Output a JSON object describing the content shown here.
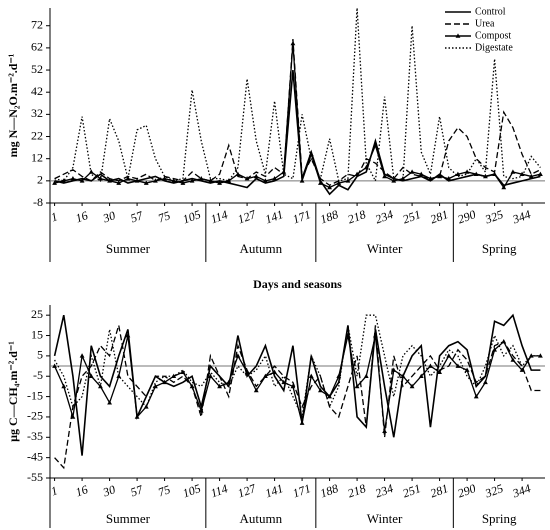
{
  "chart_data": [
    {
      "type": "line",
      "ylabel": "mg N—N₂O.m⁻².d⁻¹",
      "xlabel": "Days and seasons",
      "categories": [
        "1",
        null,
        null,
        "16",
        null,
        null,
        "30",
        null,
        null,
        "57",
        null,
        null,
        "75",
        null,
        null,
        "105",
        null,
        null,
        "114",
        null,
        null,
        "127",
        null,
        null,
        "141",
        null,
        null,
        "171",
        null,
        null,
        "188",
        null,
        null,
        "218",
        null,
        null,
        "234",
        null,
        null,
        "251",
        null,
        null,
        "281",
        null,
        null,
        "290",
        null,
        null,
        "325",
        null,
        null,
        "344",
        null,
        null
      ],
      "seasons": [
        {
          "label": "Summer",
          "start": 0,
          "end": 16
        },
        {
          "label": "Autumn",
          "start": 17,
          "end": 28
        },
        {
          "label": "Winter",
          "start": 29,
          "end": 43
        },
        {
          "label": "Spring",
          "start": 44,
          "end": 53
        }
      ],
      "ylim": [
        -8,
        80
      ],
      "yticks": [
        -8,
        2,
        12,
        22,
        32,
        42,
        52,
        62,
        72
      ],
      "reference_line": 2,
      "legend": "upper right",
      "series": [
        {
          "name": "Control",
          "color": "#000000",
          "style": "solid",
          "values": [
            2,
            1,
            2,
            3,
            2,
            5,
            2,
            3,
            1,
            2,
            3,
            4,
            2,
            1,
            2,
            3,
            2,
            1,
            2,
            1,
            0,
            -1,
            3,
            1,
            2,
            4,
            52,
            3,
            15,
            2,
            -4,
            0,
            -2,
            4,
            6,
            20,
            5,
            3,
            2,
            3,
            4,
            2,
            5,
            2,
            3,
            4,
            5,
            4,
            5,
            0,
            1,
            2,
            3,
            4
          ]
        },
        {
          "name": "Urea",
          "color": "#000000",
          "style": "dashed",
          "values": [
            3,
            5,
            7,
            4,
            2,
            6,
            3,
            2,
            4,
            3,
            5,
            2,
            4,
            3,
            2,
            6,
            3,
            2,
            5,
            18,
            4,
            3,
            6,
            4,
            8,
            5,
            66,
            4,
            12,
            3,
            0,
            2,
            5,
            4,
            12,
            10,
            6,
            3,
            8,
            5,
            4,
            3,
            4,
            20,
            26,
            22,
            12,
            8,
            6,
            33,
            26,
            14,
            5,
            7
          ]
        },
        {
          "name": "Compost",
          "color": "#000000",
          "style": "solid",
          "marker": "triangle",
          "values": [
            1,
            2,
            3,
            2,
            6,
            3,
            2,
            1,
            3,
            2,
            1,
            2,
            3,
            2,
            1,
            2,
            3,
            2,
            1,
            2,
            5,
            3,
            4,
            2,
            3,
            6,
            64,
            2,
            14,
            1,
            -1,
            1,
            2,
            5,
            8,
            18,
            4,
            2,
            3,
            6,
            5,
            3,
            4,
            3,
            5,
            6,
            5,
            4,
            5,
            -1,
            6,
            5,
            4,
            5
          ]
        },
        {
          "name": "Digestate",
          "color": "#000000",
          "style": "dotted",
          "values": [
            3,
            2,
            8,
            31,
            5,
            2,
            30,
            20,
            3,
            25,
            27,
            12,
            4,
            2,
            3,
            43,
            20,
            3,
            3,
            2,
            8,
            48,
            20,
            5,
            38,
            5,
            3,
            32,
            12,
            3,
            21,
            2,
            3,
            80,
            10,
            2,
            40,
            3,
            2,
            72,
            15,
            5,
            31,
            8,
            4,
            5,
            12,
            6,
            57,
            4,
            3,
            4,
            13,
            8
          ]
        }
      ]
    },
    {
      "type": "line",
      "ylabel": "µg C—CH₄.m⁻².d⁻¹",
      "categories": [
        "1",
        null,
        null,
        "16",
        null,
        null,
        "30",
        null,
        null,
        "57",
        null,
        null,
        "75",
        null,
        null,
        "105",
        null,
        null,
        "114",
        null,
        null,
        "127",
        null,
        null,
        "141",
        null,
        null,
        "171",
        null,
        null,
        "188",
        null,
        null,
        "218",
        null,
        null,
        "234",
        null,
        null,
        "251",
        null,
        null,
        "281",
        null,
        null,
        "290",
        null,
        null,
        "325",
        null,
        null,
        "344",
        null,
        null
      ],
      "seasons": [
        {
          "label": "Summer",
          "start": 0,
          "end": 16
        },
        {
          "label": "Autumn",
          "start": 17,
          "end": 28
        },
        {
          "label": "Winter",
          "start": 29,
          "end": 43
        },
        {
          "label": "Spring",
          "start": 44,
          "end": 53
        }
      ],
      "ylim": [
        -55,
        30
      ],
      "yticks": [
        -55,
        -45,
        -35,
        -25,
        -15,
        -5,
        5,
        15,
        25
      ],
      "reference_line": 0,
      "series": [
        {
          "name": "Control",
          "color": "#000000",
          "style": "solid",
          "values": [
            5,
            25,
            -5,
            -44,
            10,
            -5,
            -10,
            5,
            18,
            -25,
            -15,
            -5,
            -8,
            -10,
            -8,
            -5,
            -20,
            0,
            -5,
            -10,
            15,
            -5,
            0,
            10,
            -5,
            -12,
            10,
            -28,
            5,
            -10,
            -15,
            -8,
            20,
            -25,
            -30,
            18,
            -10,
            -35,
            -5,
            5,
            10,
            -30,
            5,
            10,
            12,
            8,
            -10,
            -5,
            22,
            20,
            25,
            10,
            -2,
            -2
          ]
        },
        {
          "name": "Urea",
          "color": "#000000",
          "style": "dashed",
          "values": [
            -45,
            -50,
            -20,
            -5,
            0,
            10,
            5,
            20,
            -5,
            -10,
            -15,
            -5,
            -5,
            -8,
            -5,
            -10,
            -25,
            5,
            -5,
            -15,
            10,
            -2,
            -10,
            -5,
            0,
            -5,
            -8,
            -20,
            -10,
            -5,
            -20,
            -25,
            -10,
            5,
            -30,
            20,
            -35,
            5,
            -10,
            -5,
            0,
            5,
            -2,
            0,
            8,
            3,
            -8,
            -5,
            10,
            12,
            5,
            0,
            -12,
            -12
          ]
        },
        {
          "name": "Compost",
          "color": "#000000",
          "style": "solid",
          "marker": "triangle",
          "values": [
            0,
            -10,
            -25,
            5,
            -5,
            -10,
            -18,
            -5,
            15,
            -25,
            -20,
            -10,
            -8,
            -5,
            -3,
            -10,
            -22,
            -5,
            -10,
            -8,
            5,
            -3,
            -12,
            -5,
            -3,
            -8,
            -10,
            -28,
            -5,
            -12,
            -15,
            -5,
            15,
            -10,
            -5,
            15,
            -32,
            -2,
            -5,
            -10,
            -5,
            0,
            -3,
            5,
            0,
            -2,
            -15,
            -8,
            8,
            12,
            3,
            -2,
            5,
            5
          ]
        },
        {
          "name": "Digestate",
          "color": "#000000",
          "style": "dotted",
          "values": [
            3,
            -5,
            -20,
            -15,
            5,
            -10,
            18,
            -5,
            -10,
            -15,
            -20,
            -8,
            -5,
            -5,
            -2,
            -8,
            -10,
            -3,
            -8,
            -10,
            0,
            -5,
            -2,
            5,
            -10,
            -5,
            -15,
            -25,
            5,
            -5,
            -20,
            -10,
            20,
            -5,
            25,
            25,
            5,
            -15,
            5,
            10,
            5,
            -5,
            0,
            8,
            5,
            -5,
            -10,
            0,
            15,
            5,
            10,
            0,
            5,
            5
          ]
        }
      ]
    }
  ]
}
